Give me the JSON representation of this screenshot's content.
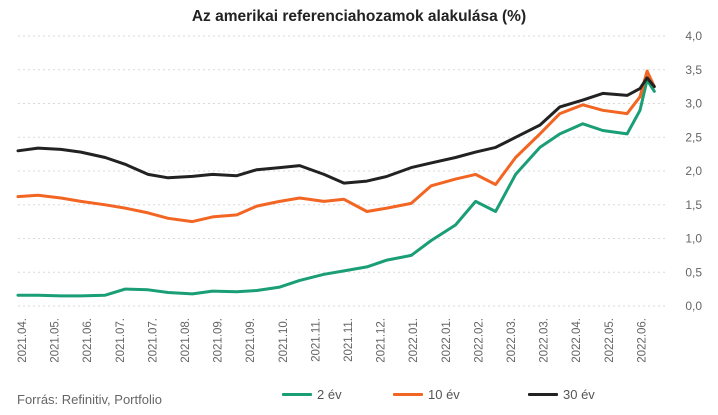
{
  "chart_data": {
    "type": "line",
    "title": "Az amerikai referenciahozamok alakulása (%)",
    "xlabel": "",
    "ylabel": "",
    "ylim": [
      0,
      4
    ],
    "yticks": [
      "0,0",
      "0,5",
      "1,0",
      "1,5",
      "2,0",
      "2,5",
      "3,0",
      "3,5",
      "4,0"
    ],
    "x_tick_labels": [
      "2021.04.",
      "2021.05.",
      "2021.06.",
      "2021.07.",
      "2021.07.",
      "2021.08.",
      "2021.09.",
      "2021.09.",
      "2021.10.",
      "2021.11.",
      "2021.11.",
      "2021.12.",
      "2022.01.",
      "2022.01.",
      "2022.02.",
      "2022.03.",
      "2022.03.",
      "2022.04.",
      "2022.05.",
      "2022.06."
    ],
    "x": [
      "2021.04.01",
      "2021.04.15",
      "2021.05.01",
      "2021.05.15",
      "2021.06.01",
      "2021.06.15",
      "2021.07.01",
      "2021.07.15",
      "2021.08.01",
      "2021.08.15",
      "2021.09.01",
      "2021.09.15",
      "2021.10.01",
      "2021.10.15",
      "2021.11.01",
      "2021.11.15",
      "2021.12.01",
      "2021.12.15",
      "2022.01.01",
      "2022.01.15",
      "2022.02.01",
      "2022.02.15",
      "2022.03.01",
      "2022.03.15",
      "2022.04.01",
      "2022.04.15",
      "2022.05.01",
      "2022.05.15",
      "2022.06.01",
      "2022.06.10",
      "2022.06.15",
      "2022.06.20"
    ],
    "series": [
      {
        "name": "2 év",
        "color": "#1a9e76",
        "values": [
          0.16,
          0.16,
          0.15,
          0.15,
          0.16,
          0.25,
          0.24,
          0.2,
          0.18,
          0.22,
          0.21,
          0.23,
          0.28,
          0.38,
          0.47,
          0.52,
          0.58,
          0.68,
          0.75,
          0.97,
          1.2,
          1.55,
          1.4,
          1.95,
          2.35,
          2.55,
          2.7,
          2.6,
          2.55,
          2.9,
          3.35,
          3.18
        ]
      },
      {
        "name": "10 év",
        "color": "#f26522",
        "values": [
          1.62,
          1.64,
          1.6,
          1.55,
          1.5,
          1.45,
          1.38,
          1.3,
          1.25,
          1.32,
          1.35,
          1.48,
          1.55,
          1.6,
          1.55,
          1.58,
          1.4,
          1.45,
          1.52,
          1.78,
          1.88,
          1.95,
          1.8,
          2.2,
          2.55,
          2.85,
          2.98,
          2.9,
          2.85,
          3.1,
          3.48,
          3.25
        ]
      },
      {
        "name": "30 év",
        "color": "#222222",
        "values": [
          2.3,
          2.34,
          2.32,
          2.28,
          2.2,
          2.1,
          1.95,
          1.9,
          1.92,
          1.95,
          1.93,
          2.02,
          2.05,
          2.08,
          1.95,
          1.82,
          1.85,
          1.92,
          2.05,
          2.12,
          2.2,
          2.28,
          2.35,
          2.5,
          2.68,
          2.95,
          3.05,
          3.15,
          3.12,
          3.22,
          3.38,
          3.25
        ]
      }
    ],
    "grid": true,
    "legend": "bottom"
  },
  "source": "Forrás: Refinitiv, Portfolio"
}
